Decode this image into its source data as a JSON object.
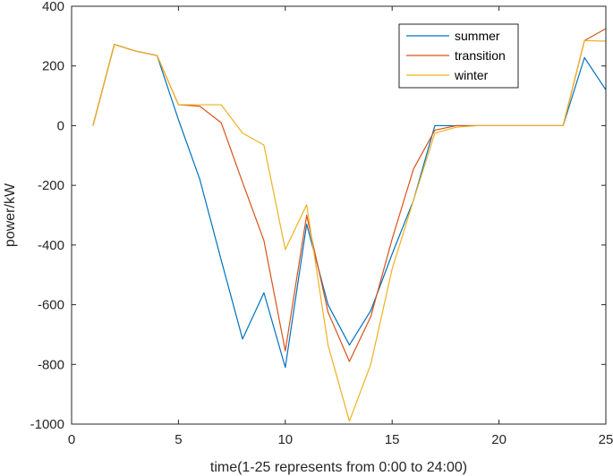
{
  "chart_data": {
    "type": "line",
    "title": "",
    "xlabel": "time(1-25 represents from 0:00 to 24:00)",
    "ylabel": "power/kW",
    "xlim": [
      0,
      25
    ],
    "ylim": [
      -1000,
      400
    ],
    "xticks": [
      0,
      5,
      10,
      15,
      20,
      25
    ],
    "yticks": [
      -1000,
      -800,
      -600,
      -400,
      -200,
      0,
      200,
      400
    ],
    "grid": false,
    "legend_position": "top-right",
    "x": [
      1,
      2,
      3,
      4,
      5,
      6,
      7,
      8,
      9,
      10,
      11,
      12,
      13,
      14,
      15,
      16,
      17,
      18,
      19,
      20,
      21,
      22,
      23,
      24,
      25
    ],
    "series": [
      {
        "name": "summer",
        "color": "#0072BD",
        "values": [
          0,
          272,
          250,
          235,
          20,
          -180,
          -450,
          -715,
          -560,
          -810,
          -330,
          -600,
          -735,
          -620,
          -430,
          -250,
          0,
          0,
          0,
          0,
          0,
          0,
          0,
          228,
          120
        ]
      },
      {
        "name": "transition",
        "color": "#D95319",
        "values": [
          0,
          272,
          250,
          235,
          70,
          65,
          10,
          -190,
          -385,
          -755,
          -300,
          -625,
          -790,
          -640,
          -380,
          -145,
          -15,
          0,
          0,
          0,
          0,
          0,
          0,
          285,
          325
        ]
      },
      {
        "name": "winter",
        "color": "#EDB120",
        "values": [
          0,
          272,
          250,
          235,
          70,
          70,
          70,
          -25,
          -65,
          -415,
          -265,
          -735,
          -990,
          -800,
          -480,
          -250,
          -25,
          -5,
          0,
          0,
          0,
          0,
          0,
          285,
          283
        ]
      }
    ]
  }
}
